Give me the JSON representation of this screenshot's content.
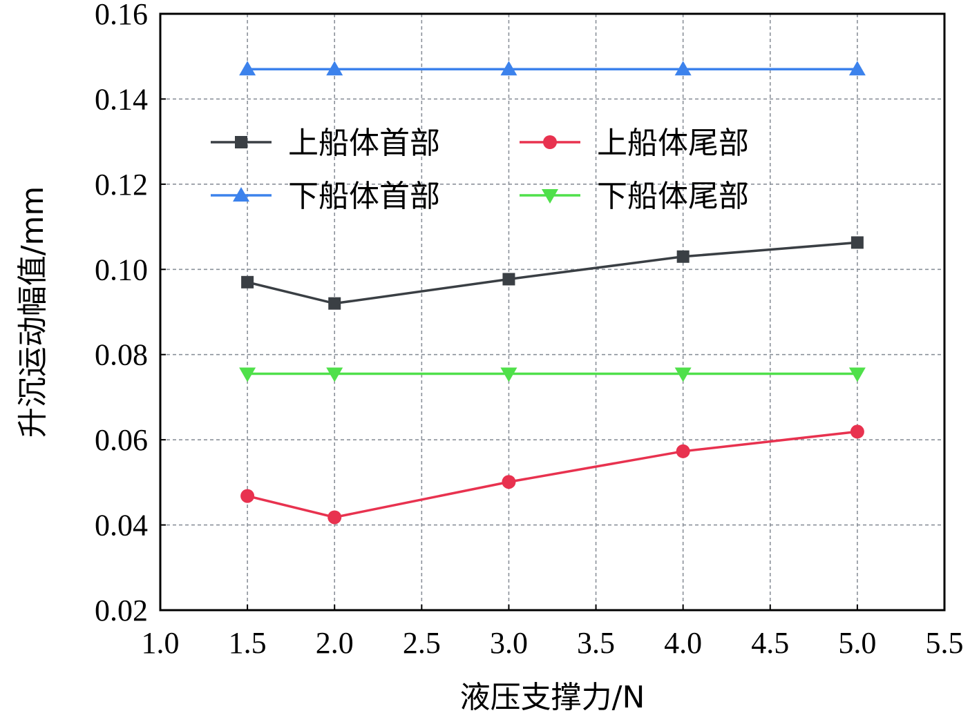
{
  "chart_data": {
    "type": "line",
    "xlabel": "液压支撑力/N",
    "ylabel": "升沉运动幅值/mm",
    "xlim": [
      1.0,
      5.5
    ],
    "ylim": [
      0.02,
      0.16
    ],
    "xticks": [
      1.0,
      1.5,
      2.0,
      2.5,
      3.0,
      3.5,
      4.0,
      4.5,
      5.0,
      5.5
    ],
    "yticks": [
      0.02,
      0.04,
      0.06,
      0.08,
      0.1,
      0.12,
      0.14,
      0.16
    ],
    "xtick_labels": [
      "1.0",
      "1.5",
      "2.0",
      "2.5",
      "3.0",
      "3.5",
      "4.0",
      "4.5",
      "5.0",
      "5.5"
    ],
    "ytick_labels": [
      "0.02",
      "0.04",
      "0.06",
      "0.08",
      "0.10",
      "0.12",
      "0.14",
      "0.16"
    ],
    "grid": true,
    "legend_position": "top-left",
    "x": [
      1.5,
      2.0,
      3.0,
      4.0,
      5.0
    ],
    "series": [
      {
        "name": "上船体首部",
        "values": [
          0.097,
          0.092,
          0.0977,
          0.103,
          0.1063
        ],
        "color": "#3a3f44",
        "marker": "square"
      },
      {
        "name": "上船体尾部",
        "values": [
          0.0468,
          0.0418,
          0.0501,
          0.0573,
          0.0619
        ],
        "color": "#e8324f",
        "marker": "circle"
      },
      {
        "name": "下船体首部",
        "values": [
          0.147,
          0.147,
          0.147,
          0.147,
          0.147
        ],
        "color": "#3c82ec",
        "marker": "triangle-up"
      },
      {
        "name": "下船体尾部",
        "values": [
          0.0755,
          0.0755,
          0.0755,
          0.0755,
          0.0755
        ],
        "color": "#4fe04a",
        "marker": "triangle-down"
      }
    ]
  }
}
